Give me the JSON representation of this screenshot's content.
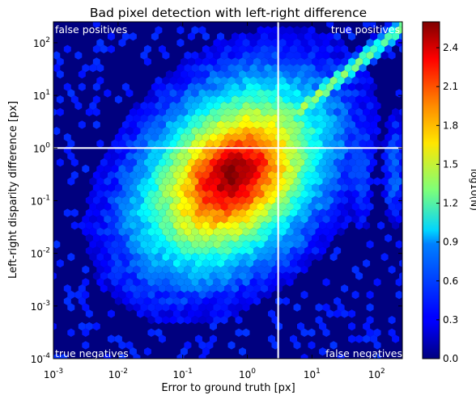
{
  "chart_data": {
    "type": "heatmap",
    "subtype": "hexbin",
    "title": "Bad pixel detection with left-right difference",
    "xlabel": "Error to ground truth [px]",
    "ylabel": "Left-right disparity difference [px]",
    "xscale": "log",
    "yscale": "log",
    "xlim": [
      0.001,
      250
    ],
    "ylim": [
      0.0001,
      250
    ],
    "x_ticks": [
      {
        "value": 0.001,
        "base": "10",
        "exp": "-3"
      },
      {
        "value": 0.01,
        "base": "10",
        "exp": "-2"
      },
      {
        "value": 0.1,
        "base": "10",
        "exp": "-1"
      },
      {
        "value": 1,
        "base": "10",
        "exp": "0"
      },
      {
        "value": 10,
        "base": "10",
        "exp": "1"
      },
      {
        "value": 100,
        "base": "10",
        "exp": "2"
      }
    ],
    "y_ticks": [
      {
        "value": 0.0001,
        "base": "10",
        "exp": "-4"
      },
      {
        "value": 0.001,
        "base": "10",
        "exp": "-3"
      },
      {
        "value": 0.01,
        "base": "10",
        "exp": "-2"
      },
      {
        "value": 0.1,
        "base": "10",
        "exp": "-1"
      },
      {
        "value": 1,
        "base": "10",
        "exp": "0"
      },
      {
        "value": 10,
        "base": "10",
        "exp": "1"
      },
      {
        "value": 100,
        "base": "10",
        "exp": "2"
      }
    ],
    "colorbar": {
      "label": "log10(N)",
      "range": [
        0,
        2.6
      ],
      "colormap": "jet",
      "ticks": [
        "0.0",
        "0.3",
        "0.6",
        "0.9",
        "1.2",
        "1.5",
        "1.8",
        "2.1",
        "2.4"
      ]
    },
    "thresholds": {
      "x": 3,
      "y": 1
    },
    "density_peak": {
      "x": 0.6,
      "y": 0.3,
      "log10_count": 2.6
    },
    "quadrant_labels": {
      "top_left": "false positives",
      "top_right": "true positives",
      "bottom_left": "true negatives",
      "bottom_right": "false negatives"
    },
    "background_color": "#00007f",
    "grid": false
  }
}
